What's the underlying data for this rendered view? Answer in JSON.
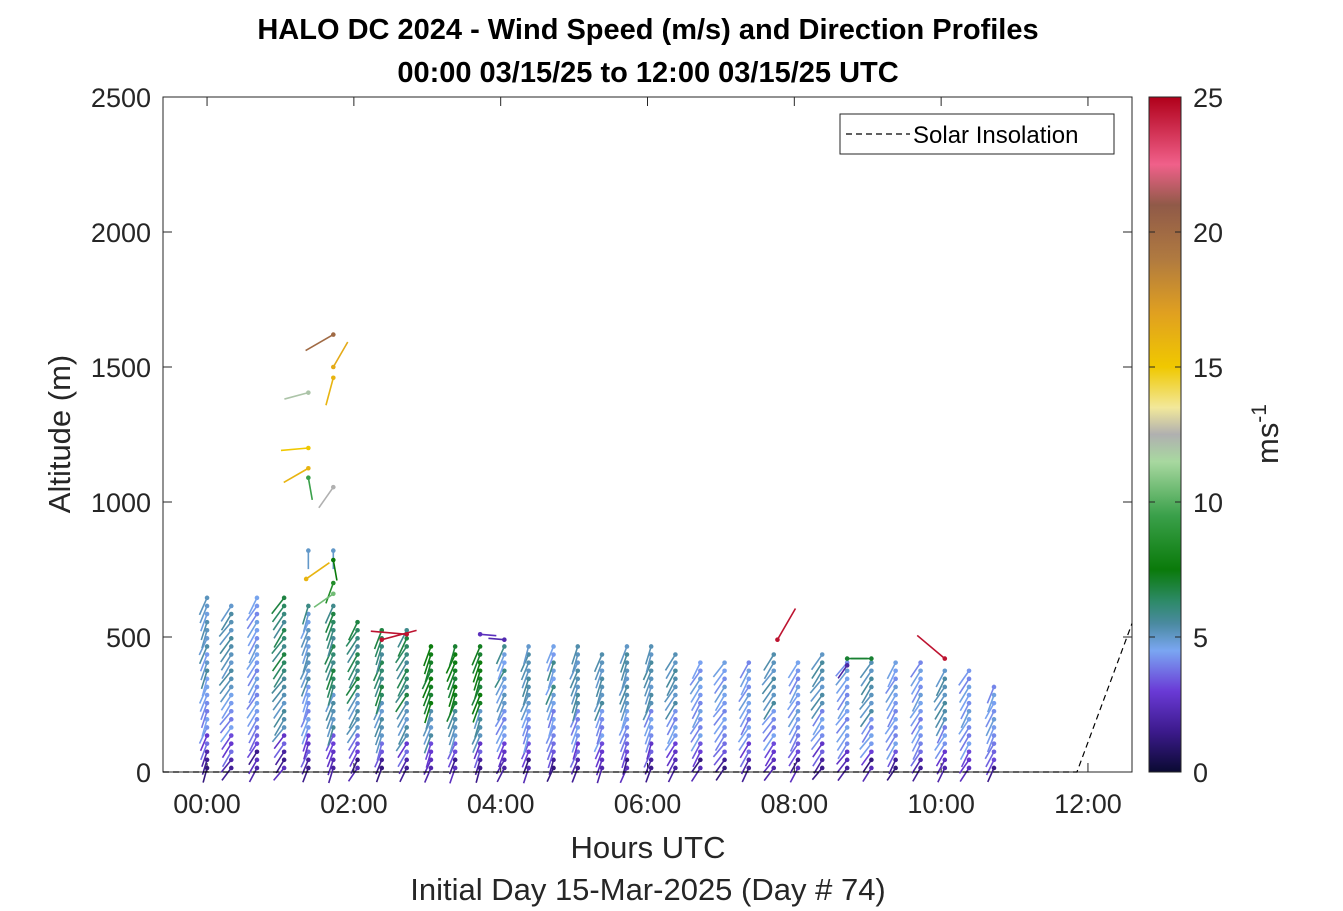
{
  "chart_data": {
    "type": "wind-barb-profile",
    "title_line1": "HALO DC 2024 - Wind Speed (m/s) and Direction Profiles",
    "title_line2": "00:00 03/15/25 to 12:00 03/15/25  UTC",
    "xlabel": "Hours UTC",
    "xlabel2": "Initial Day 15-Mar-2025 (Day # 74)",
    "ylabel": "Altitude (m)",
    "xlim": [
      -0.6,
      12.6
    ],
    "ylim": [
      0,
      2500
    ],
    "xticks": [
      0,
      2,
      4,
      6,
      8,
      10,
      12
    ],
    "xtick_labels": [
      "00:00",
      "02:00",
      "04:00",
      "06:00",
      "08:00",
      "10:00",
      "12:00"
    ],
    "yticks": [
      0,
      500,
      1000,
      1500,
      2000,
      2500
    ],
    "ytick_labels": [
      "0",
      "500",
      "1000",
      "1500",
      "2000",
      "2500"
    ],
    "colorbar": {
      "label": "ms-1",
      "label_base": "ms",
      "label_sup": "-1",
      "range": [
        0,
        25
      ],
      "ticks": [
        0,
        5,
        10,
        15,
        20,
        25
      ],
      "tick_labels": [
        "0",
        "5",
        "10",
        "15",
        "20",
        "25"
      ],
      "colormap_stops": [
        {
          "v": 0,
          "c": "#0a0a32"
        },
        {
          "v": 1.5,
          "c": "#3c1a8c"
        },
        {
          "v": 3,
          "c": "#6a3ad6"
        },
        {
          "v": 4.5,
          "c": "#7aa6f2"
        },
        {
          "v": 5.5,
          "c": "#4a8aa0"
        },
        {
          "v": 6.3,
          "c": "#2e8a6a"
        },
        {
          "v": 7.5,
          "c": "#0a7a0a"
        },
        {
          "v": 9.5,
          "c": "#3aa04a"
        },
        {
          "v": 11.5,
          "c": "#a8d8a0"
        },
        {
          "v": 12.5,
          "c": "#b0b0b0"
        },
        {
          "v": 13.5,
          "c": "#f2e89a"
        },
        {
          "v": 15,
          "c": "#f0c800"
        },
        {
          "v": 17,
          "c": "#e0a020"
        },
        {
          "v": 19,
          "c": "#b07a40"
        },
        {
          "v": 21,
          "c": "#905a48"
        },
        {
          "v": 22.5,
          "c": "#f0608a"
        },
        {
          "v": 25,
          "c": "#b0001a"
        }
      ]
    },
    "legend": {
      "entries": [
        "Solar Insolation"
      ],
      "location": "top-right"
    },
    "solar_insolation": {
      "x": [
        -0.6,
        11.85,
        12.6
      ],
      "y": [
        0,
        0,
        550
      ]
    },
    "profiles": [
      {
        "t": 0.0,
        "top": 650,
        "dir": 200,
        "shade": 0
      },
      {
        "t": 0.33,
        "top": 615,
        "dir": 215,
        "shade": 1
      },
      {
        "t": 0.68,
        "top": 650,
        "dir": 210,
        "shade": 2
      },
      {
        "t": 1.05,
        "top": 650,
        "dir": 215,
        "shade": 3
      },
      {
        "t": 1.38,
        "top": 615,
        "dir": 200,
        "shade": 0
      },
      {
        "t": 1.72,
        "top": 615,
        "dir": 200,
        "shade": 3
      },
      {
        "t": 2.05,
        "top": 575,
        "dir": 210,
        "shade": 3
      },
      {
        "t": 2.38,
        "top": 540,
        "dir": 200,
        "shade": 3
      },
      {
        "t": 2.72,
        "top": 535,
        "dir": 210,
        "shade": 3
      },
      {
        "t": 3.05,
        "top": 490,
        "dir": 200,
        "shade": 4
      },
      {
        "t": 3.38,
        "top": 490,
        "dir": 200,
        "shade": 4
      },
      {
        "t": 3.72,
        "top": 480,
        "dir": 200,
        "shade": 4
      },
      {
        "t": 4.05,
        "top": 490,
        "dir": 205,
        "shade": 0
      },
      {
        "t": 4.38,
        "top": 490,
        "dir": 200,
        "shade": 1
      },
      {
        "t": 4.72,
        "top": 490,
        "dir": 200,
        "shade": 0
      },
      {
        "t": 5.05,
        "top": 490,
        "dir": 200,
        "shade": 1
      },
      {
        "t": 5.38,
        "top": 460,
        "dir": 200,
        "shade": 1
      },
      {
        "t": 5.72,
        "top": 490,
        "dir": 200,
        "shade": 1
      },
      {
        "t": 6.05,
        "top": 490,
        "dir": 200,
        "shade": 1
      },
      {
        "t": 6.38,
        "top": 460,
        "dir": 210,
        "shade": 1
      },
      {
        "t": 6.72,
        "top": 425,
        "dir": 210,
        "shade": 2
      },
      {
        "t": 7.05,
        "top": 425,
        "dir": 215,
        "shade": 2
      },
      {
        "t": 7.38,
        "top": 425,
        "dir": 210,
        "shade": 2
      },
      {
        "t": 7.72,
        "top": 460,
        "dir": 215,
        "shade": 1
      },
      {
        "t": 8.05,
        "top": 425,
        "dir": 210,
        "shade": 2
      },
      {
        "t": 8.38,
        "top": 455,
        "dir": 215,
        "shade": 1
      },
      {
        "t": 8.72,
        "top": 420,
        "dir": 215,
        "shade": 2
      },
      {
        "t": 9.05,
        "top": 420,
        "dir": 215,
        "shade": 1
      },
      {
        "t": 9.38,
        "top": 420,
        "dir": 210,
        "shade": 2
      },
      {
        "t": 9.72,
        "top": 420,
        "dir": 210,
        "shade": 2
      },
      {
        "t": 10.05,
        "top": 380,
        "dir": 210,
        "shade": 1
      },
      {
        "t": 10.38,
        "top": 375,
        "dir": 210,
        "shade": 2
      },
      {
        "t": 10.72,
        "top": 340,
        "dir": 205,
        "shade": 2
      }
    ],
    "high_barbs": [
      {
        "t": 1.38,
        "alt": 820,
        "speed": 5.0,
        "dir": 180
      },
      {
        "t": 1.38,
        "alt": 1090,
        "speed": 9.5,
        "dir": 170
      },
      {
        "t": 1.38,
        "alt": 1125,
        "speed": 16.0,
        "dir": 240
      },
      {
        "t": 1.38,
        "alt": 1200,
        "speed": 15.0,
        "dir": 265
      },
      {
        "t": 1.38,
        "alt": 1405,
        "speed": 12.0,
        "dir": 255
      },
      {
        "t": 1.35,
        "alt": 715,
        "speed": 16.0,
        "dir": 55
      },
      {
        "t": 1.72,
        "alt": 820,
        "speed": 5.0,
        "dir": 180
      },
      {
        "t": 1.72,
        "alt": 785,
        "speed": 7.5,
        "dir": 170
      },
      {
        "t": 1.72,
        "alt": 700,
        "speed": 8.5,
        "dir": 200
      },
      {
        "t": 1.72,
        "alt": 660,
        "speed": 10.5,
        "dir": 235
      },
      {
        "t": 1.72,
        "alt": 1055,
        "speed": 12.5,
        "dir": 215
      },
      {
        "t": 1.72,
        "alt": 1460,
        "speed": 16.0,
        "dir": 195
      },
      {
        "t": 1.72,
        "alt": 1500,
        "speed": 16.5,
        "dir": 30
      },
      {
        "t": 1.72,
        "alt": 1620,
        "speed": 20.0,
        "dir": 240
      }
    ],
    "outliers": [
      {
        "t": 2.38,
        "alt": 490,
        "speed": 24.5,
        "dir": 75
      },
      {
        "t": 2.72,
        "alt": 510,
        "speed": 24.5,
        "dir": 275
      },
      {
        "t": 3.72,
        "alt": 510,
        "speed": 2.5,
        "dir": 95
      },
      {
        "t": 4.05,
        "alt": 490,
        "speed": 2.2,
        "dir": 275
      },
      {
        "t": 7.77,
        "alt": 490,
        "speed": 24.5,
        "dir": 30
      },
      {
        "t": 8.72,
        "alt": 420,
        "speed": 7.0,
        "dir": 90
      },
      {
        "t": 9.05,
        "alt": 420,
        "speed": 7.0,
        "dir": 270
      },
      {
        "t": 8.72,
        "alt": 395,
        "speed": 2.0,
        "dir": 215
      },
      {
        "t": 10.05,
        "alt": 420,
        "speed": 24.5,
        "dir": 310
      }
    ]
  }
}
